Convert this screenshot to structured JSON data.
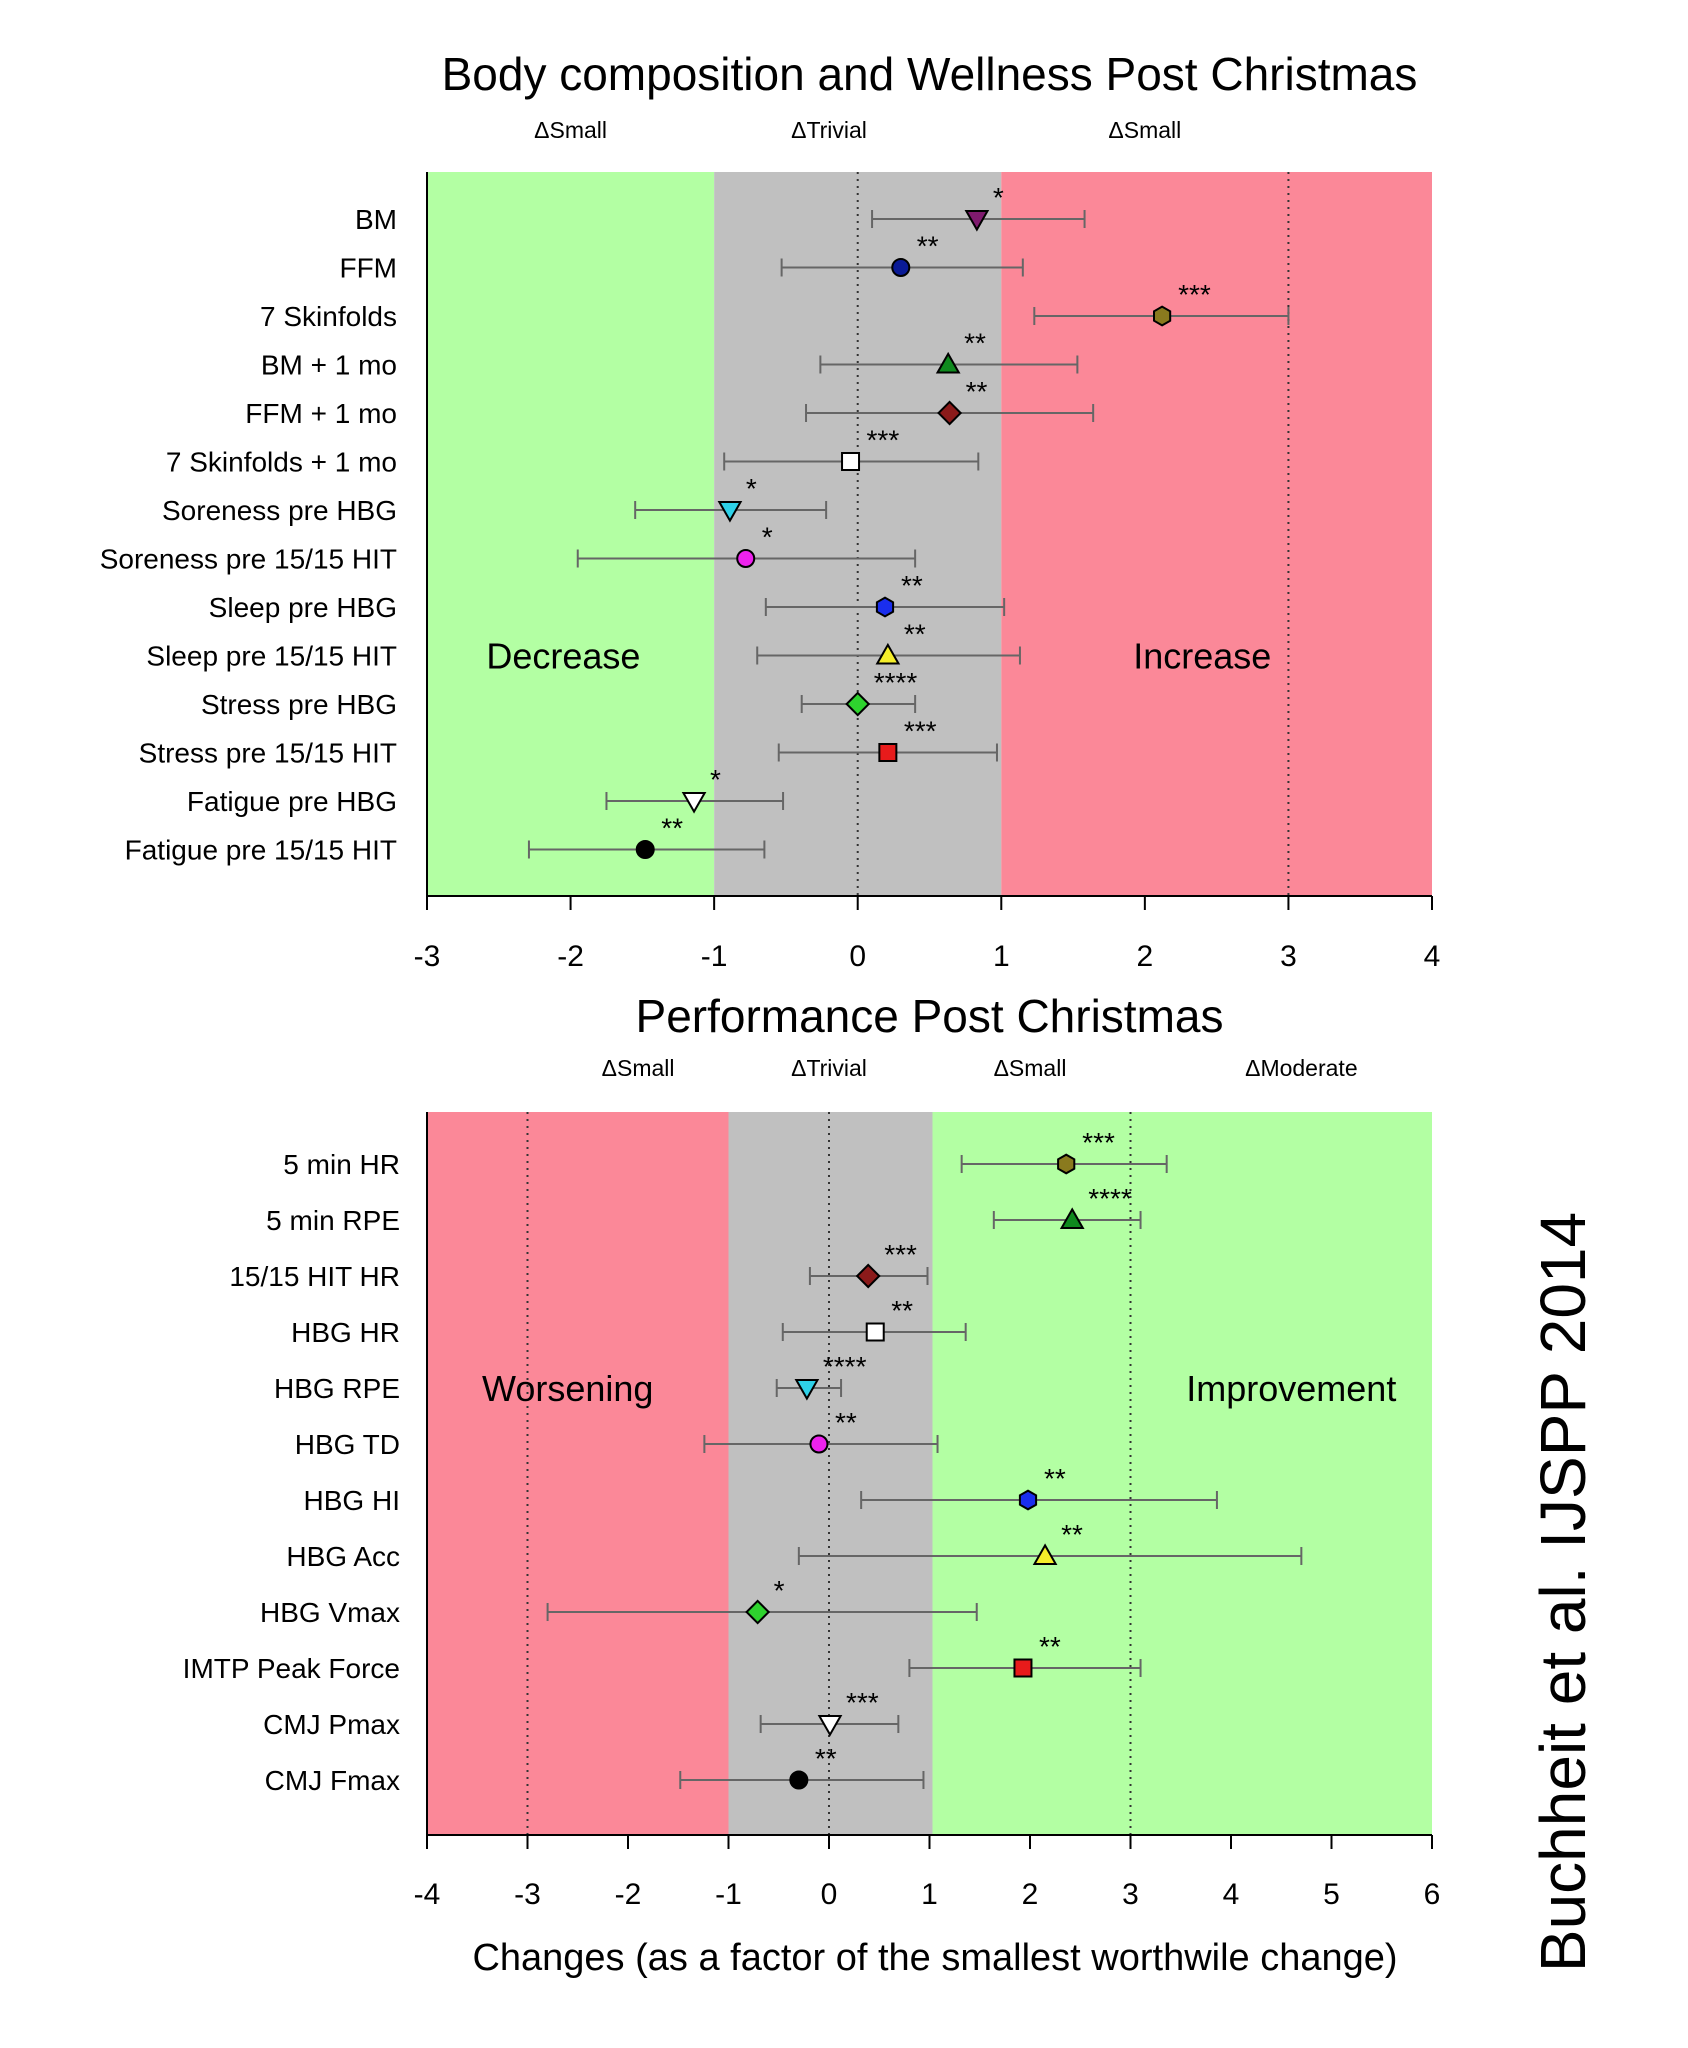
{
  "citation": "Buchheit et al. IJSPP 2014",
  "xlabel": "Changes (as a factor of the smallest worthwile change)",
  "chart_data": [
    {
      "type": "forest",
      "title": "Body composition and Wellness Post Christmas",
      "xlim": [
        -3,
        4
      ],
      "xticks": [
        -3,
        -2,
        -1,
        0,
        1,
        2,
        3,
        4
      ],
      "dotted_lines": [
        0,
        3
      ],
      "bands": [
        {
          "from": -3,
          "to": -1,
          "color": "#b3ffa3"
        },
        {
          "from": -1,
          "to": 1,
          "color": "#c0c0c0"
        },
        {
          "from": 1,
          "to": 4,
          "color": "#fb8898"
        }
      ],
      "zone_labels": [
        {
          "text": "ΔSmall",
          "x": -2
        },
        {
          "text": "ΔTrivial",
          "x": -0.2
        },
        {
          "text": "ΔSmall",
          "x": 2
        }
      ],
      "region_labels": [
        {
          "text": "Decrease",
          "x": -2.05
        },
        {
          "text": "Increase",
          "x": 2.4
        }
      ],
      "region_label_row": 9,
      "items": [
        {
          "label": "BM",
          "mean": 0.83,
          "lo": 0.1,
          "hi": 1.58,
          "sig": "*",
          "marker": "tri-down",
          "color": "#7f1a6e"
        },
        {
          "label": "FFM",
          "mean": 0.3,
          "lo": -0.53,
          "hi": 1.15,
          "sig": "**",
          "marker": "circle",
          "color": "#0a1a96"
        },
        {
          "label": "7 Skinfolds",
          "mean": 2.12,
          "lo": 1.23,
          "hi": 3.0,
          "sig": "***",
          "marker": "hexagon",
          "color": "#8a7a1e"
        },
        {
          "label": "BM + 1 mo",
          "mean": 0.63,
          "lo": -0.26,
          "hi": 1.53,
          "sig": "**",
          "marker": "tri-up",
          "color": "#0f8a1e"
        },
        {
          "label": "FFM + 1 mo",
          "mean": 0.64,
          "lo": -0.36,
          "hi": 1.64,
          "sig": "**",
          "marker": "diamond",
          "color": "#8b1a1a"
        },
        {
          "label": "7 Skinfolds + 1 mo",
          "mean": -0.05,
          "lo": -0.93,
          "hi": 0.84,
          "sig": "***",
          "marker": "square",
          "color": "#ffffff"
        },
        {
          "label": "Soreness pre HBG",
          "mean": -0.89,
          "lo": -1.55,
          "hi": -0.22,
          "sig": "*",
          "marker": "tri-down",
          "color": "#2ed1e8"
        },
        {
          "label": "Soreness pre 15/15 HIT",
          "mean": -0.78,
          "lo": -1.95,
          "hi": 0.4,
          "sig": "*",
          "marker": "circle",
          "color": "#ee22ee"
        },
        {
          "label": "Sleep pre HBG",
          "mean": 0.19,
          "lo": -0.64,
          "hi": 1.02,
          "sig": "**",
          "marker": "hexagon",
          "color": "#1a2eee"
        },
        {
          "label": "Sleep pre 15/15 HIT",
          "mean": 0.21,
          "lo": -0.7,
          "hi": 1.13,
          "sig": "**",
          "marker": "tri-up",
          "color": "#f5ee2a"
        },
        {
          "label": "Stress pre HBG",
          "mean": 0.0,
          "lo": -0.39,
          "hi": 0.4,
          "sig": "****",
          "marker": "diamond",
          "color": "#2ed32e"
        },
        {
          "label": "Stress pre 15/15 HIT",
          "mean": 0.21,
          "lo": -0.55,
          "hi": 0.97,
          "sig": "***",
          "marker": "square",
          "color": "#e81b1b"
        },
        {
          "label": "Fatigue pre HBG",
          "mean": -1.14,
          "lo": -1.75,
          "hi": -0.52,
          "sig": "*",
          "marker": "tri-down",
          "color": "#ffffff"
        },
        {
          "label": "Fatigue pre 15/15 HIT",
          "mean": -1.48,
          "lo": -2.29,
          "hi": -0.65,
          "sig": "**",
          "marker": "circle",
          "color": "#000000"
        }
      ]
    },
    {
      "type": "forest",
      "title": "Performance Post Christmas",
      "xlim": [
        -4,
        6
      ],
      "xticks": [
        -4,
        -3,
        -2,
        -1,
        0,
        1,
        2,
        3,
        4,
        5,
        6
      ],
      "dotted_lines": [
        -3,
        0,
        3
      ],
      "bands": [
        {
          "from": -4,
          "to": -1,
          "color": "#fb8898"
        },
        {
          "from": -1,
          "to": 1.03,
          "color": "#c0c0c0"
        },
        {
          "from": 1.03,
          "to": 6,
          "color": "#b3ffa3"
        }
      ],
      "zone_labels": [
        {
          "text": "ΔSmall",
          "x": -1.9
        },
        {
          "text": "ΔTrivial",
          "x": 0.0
        },
        {
          "text": "ΔSmall",
          "x": 2.0
        },
        {
          "text": "ΔModerate",
          "x": 4.7
        }
      ],
      "region_labels": [
        {
          "text": "Worsening",
          "x": -2.6
        },
        {
          "text": "Improvement",
          "x": 4.6
        }
      ],
      "region_label_row": 4,
      "items": [
        {
          "label": "5 min HR",
          "mean": 2.36,
          "lo": 1.32,
          "hi": 3.36,
          "sig": "***",
          "marker": "hexagon",
          "color": "#8a7a1e"
        },
        {
          "label": "5 min RPE",
          "mean": 2.42,
          "lo": 1.64,
          "hi": 3.1,
          "sig": "****",
          "marker": "tri-up",
          "color": "#0f8a1e"
        },
        {
          "label": "15/15 HIT HR",
          "mean": 0.39,
          "lo": -0.19,
          "hi": 0.98,
          "sig": "***",
          "marker": "diamond",
          "color": "#8b1a1a"
        },
        {
          "label": "HBG HR",
          "mean": 0.46,
          "lo": -0.46,
          "hi": 1.36,
          "sig": "**",
          "marker": "square",
          "color": "#ffffff"
        },
        {
          "label": "HBG RPE",
          "mean": -0.22,
          "lo": -0.52,
          "hi": 0.12,
          "sig": "****",
          "marker": "tri-down",
          "color": "#2ed1e8"
        },
        {
          "label": "HBG TD",
          "mean": -0.1,
          "lo": -1.24,
          "hi": 1.08,
          "sig": "**",
          "marker": "circle",
          "color": "#ee22ee"
        },
        {
          "label": "HBG HI",
          "mean": 1.98,
          "lo": 0.32,
          "hi": 3.86,
          "sig": "**",
          "marker": "hexagon",
          "color": "#1a2eee"
        },
        {
          "label": "HBG Acc",
          "mean": 2.15,
          "lo": -0.3,
          "hi": 4.7,
          "sig": "**",
          "marker": "tri-up",
          "color": "#f5ee2a"
        },
        {
          "label": "HBG Vmax",
          "mean": -0.71,
          "lo": -2.8,
          "hi": 1.47,
          "sig": "*",
          "marker": "diamond",
          "color": "#2ed32e"
        },
        {
          "label": "IMTP Peak Force",
          "mean": 1.93,
          "lo": 0.8,
          "hi": 3.1,
          "sig": "**",
          "marker": "square",
          "color": "#e81b1b"
        },
        {
          "label": "CMJ Pmax",
          "mean": 0.01,
          "lo": -0.68,
          "hi": 0.69,
          "sig": "***",
          "marker": "tri-down",
          "color": "#ffffff"
        },
        {
          "label": "CMJ Fmax",
          "mean": -0.3,
          "lo": -1.48,
          "hi": 0.94,
          "sig": "**",
          "marker": "circle",
          "color": "#000000"
        }
      ]
    }
  ]
}
